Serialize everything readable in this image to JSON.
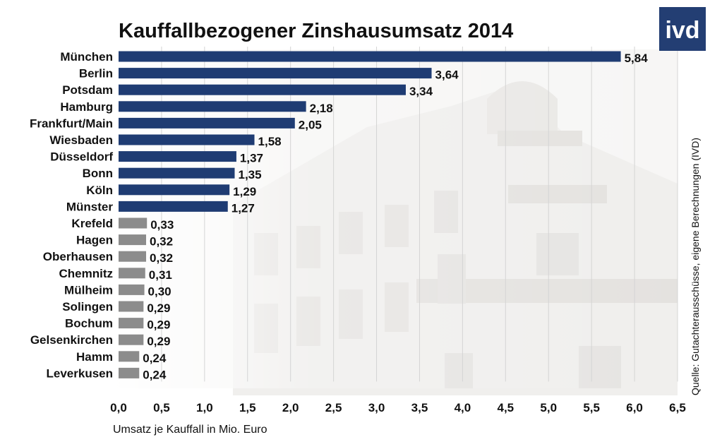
{
  "chart_data": {
    "type": "bar",
    "orientation": "horizontal",
    "title": "Kauffallbezogener Zinshausumsatz 2014",
    "xlabel": "Umsatz je Kauffall in Mio. Euro",
    "ylabel": "",
    "xlim": [
      0,
      6.5
    ],
    "x_ticks": [
      "0,0",
      "0,5",
      "1,0",
      "1,5",
      "2,0",
      "2,5",
      "3,0",
      "3,5",
      "4,0",
      "4,5",
      "5,0",
      "5,5",
      "6,0",
      "6,5"
    ],
    "grid": true,
    "categories": [
      "München",
      "Berlin",
      "Potsdam",
      "Hamburg",
      "Frankfurt/Main",
      "Wiesbaden",
      "Düsseldorf",
      "Bonn",
      "Köln",
      "Münster",
      "Krefeld",
      "Hagen",
      "Oberhausen",
      "Chemnitz",
      "Mülheim",
      "Solingen",
      "Bochum",
      "Gelsenkirchen",
      "Hamm",
      "Leverkusen"
    ],
    "values": [
      5.84,
      3.64,
      3.34,
      2.18,
      2.05,
      1.58,
      1.37,
      1.35,
      1.29,
      1.27,
      0.33,
      0.32,
      0.32,
      0.31,
      0.3,
      0.29,
      0.29,
      0.29,
      0.24,
      0.24
    ],
    "value_labels": [
      "5,84",
      "3,64",
      "3,34",
      "2,18",
      "2,05",
      "1,58",
      "1,37",
      "1,35",
      "1,29",
      "1,27",
      "0,33",
      "0,32",
      "0,32",
      "0,31",
      "0,30",
      "0,29",
      "0,29",
      "0,29",
      "0,24",
      "0,24"
    ],
    "groups": [
      {
        "count": 10,
        "color": "#1f3c73"
      },
      {
        "count": 10,
        "color": "#8c8c8c"
      }
    ],
    "source": "Quelle: Gutachterausschüsse, eigene Berechnungen (IVD)"
  },
  "logo": {
    "text": "ivd",
    "color": "#233e73"
  }
}
